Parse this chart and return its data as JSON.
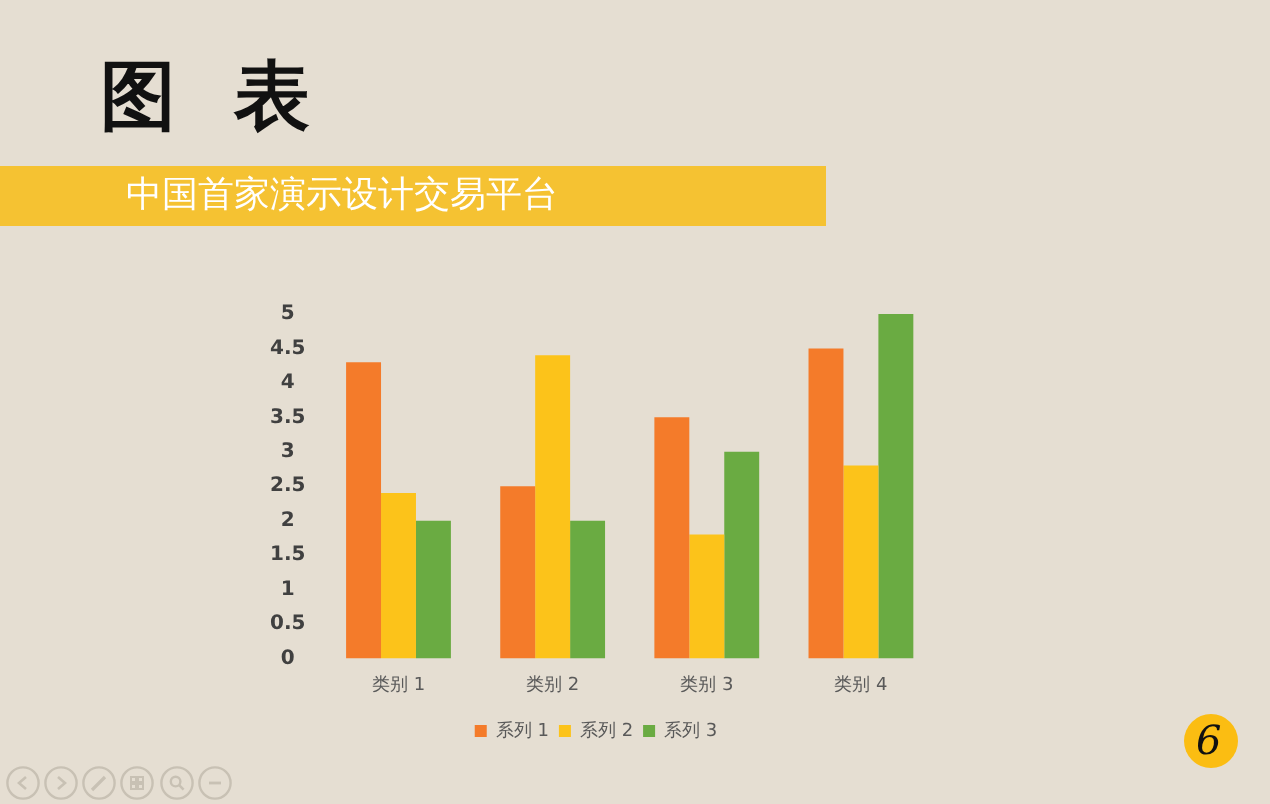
{
  "chart_data": {
    "type": "bar",
    "title": "图 表",
    "subtitle": "中国首家演示设计交易平台",
    "categories": [
      "类别 1",
      "类别 2",
      "类别 3",
      "类别 4"
    ],
    "series": [
      {
        "name": "系列 1",
        "color": "#f47b2a",
        "values": [
          4.3,
          2.5,
          3.5,
          4.5
        ]
      },
      {
        "name": "系列 2",
        "color": "#fcc31a",
        "values": [
          2.4,
          4.4,
          1.8,
          2.8
        ]
      },
      {
        "name": "系列 3",
        "color": "#6aab42",
        "values": [
          2,
          2,
          3,
          5
        ]
      }
    ],
    "ylim": [
      0,
      5
    ],
    "yticks": [
      0,
      0.5,
      1,
      1.5,
      2,
      2.5,
      3,
      3.5,
      4,
      4.5,
      5
    ],
    "grid": false,
    "legend": "bottom",
    "annotations": [
      "6"
    ]
  }
}
